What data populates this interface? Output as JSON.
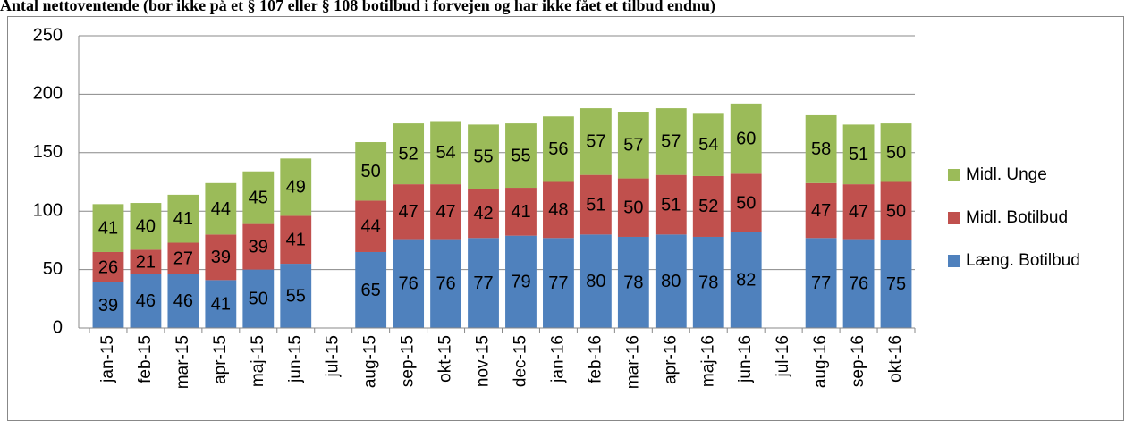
{
  "chart_data": {
    "type": "stacked_bar",
    "title": "Antal nettoventende (bor ikke på et § 107 eller § 108 botilbud i forvejen og har ikke fået et tilbud endnu)",
    "categories": [
      "jan-15",
      "feb-15",
      "mar-15",
      "apr-15",
      "maj-15",
      "jun-15",
      "jul-15",
      "aug-15",
      "sep-15",
      "okt-15",
      "nov-15",
      "dec-15",
      "jan-16",
      "feb-16",
      "mar-16",
      "apr-16",
      "maj-16",
      "jun-16",
      "jul-16",
      "aug-16",
      "sep-16",
      "okt-16"
    ],
    "series": [
      {
        "name": "Læng. Botilbud",
        "color": "#4f81bd",
        "values": [
          39,
          46,
          46,
          41,
          50,
          55,
          null,
          65,
          76,
          76,
          77,
          79,
          77,
          80,
          78,
          80,
          78,
          82,
          null,
          77,
          76,
          75
        ]
      },
      {
        "name": "Midl. Botilbud",
        "color": "#c0504d",
        "values": [
          26,
          21,
          27,
          39,
          39,
          41,
          null,
          44,
          47,
          47,
          42,
          41,
          48,
          51,
          50,
          51,
          52,
          50,
          null,
          47,
          47,
          50
        ]
      },
      {
        "name": "Midl. Unge",
        "color": "#9bbb59",
        "values": [
          41,
          40,
          41,
          44,
          45,
          49,
          null,
          50,
          52,
          54,
          55,
          55,
          56,
          57,
          57,
          57,
          54,
          60,
          null,
          58,
          51,
          50
        ]
      }
    ],
    "ylim": [
      0,
      250
    ],
    "yticks": [
      0,
      50,
      100,
      150,
      200,
      250
    ],
    "grid": true,
    "legend": "right"
  }
}
